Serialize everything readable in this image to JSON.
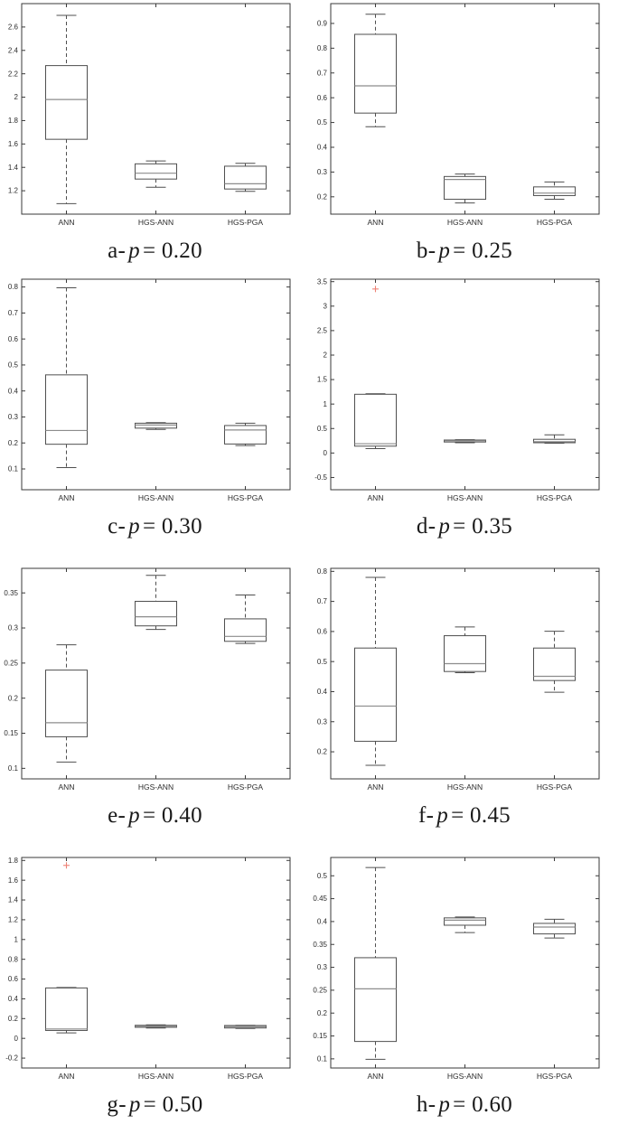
{
  "figure": {
    "categories": [
      "ANN",
      "HGS-ANN",
      "HGS-PGA"
    ],
    "colors": {
      "axis": "#3a3a3a",
      "box_stroke": "#4f4f4f",
      "whisker": "#4f4f4f",
      "median": "#8c8c8c",
      "outlier": "#ee8276",
      "tick_label": "#2b2b2b",
      "background": "#ffffff"
    }
  },
  "chart_data": [
    {
      "type": "box",
      "panel_id": "a",
      "caption_prefix": "a-",
      "caption_var": "p",
      "caption_rest": "= 0.20",
      "p_value": 0.2,
      "ylim": [
        1.0,
        2.8
      ],
      "ytick_values": [
        1.2,
        1.4,
        1.6,
        1.8,
        2,
        2.2,
        2.4,
        2.6
      ],
      "ytick_labels": [
        "1.2",
        "1.4",
        "1.6",
        "1.8",
        "2",
        "2.2",
        "2.4",
        "2.6"
      ],
      "series": [
        {
          "name": "ANN",
          "whislo": 1.09,
          "q1": 1.64,
          "med": 1.98,
          "q3": 2.27,
          "whishi": 2.7,
          "outliers": []
        },
        {
          "name": "HGS-ANN",
          "whislo": 1.23,
          "q1": 1.3,
          "med": 1.35,
          "q3": 1.43,
          "whishi": 1.455,
          "outliers": []
        },
        {
          "name": "HGS-PGA",
          "whislo": 1.195,
          "q1": 1.215,
          "med": 1.26,
          "q3": 1.41,
          "whishi": 1.435,
          "outliers": []
        }
      ]
    },
    {
      "type": "box",
      "panel_id": "b",
      "caption_prefix": "b-",
      "caption_var": "p",
      "caption_rest": "= 0.25",
      "p_value": 0.25,
      "ylim": [
        0.13,
        0.98
      ],
      "ytick_values": [
        0.2,
        0.3,
        0.4,
        0.5,
        0.6,
        0.7,
        0.8,
        0.9
      ],
      "ytick_labels": [
        "0.2",
        "0.3",
        "0.4",
        "0.5",
        "0.6",
        "0.7",
        "0.8",
        "0.9"
      ],
      "series": [
        {
          "name": "ANN",
          "whislo": 0.483,
          "q1": 0.538,
          "med": 0.648,
          "q3": 0.856,
          "whishi": 0.937,
          "outliers": []
        },
        {
          "name": "HGS-ANN",
          "whislo": 0.175,
          "q1": 0.19,
          "med": 0.27,
          "q3": 0.282,
          "whishi": 0.292,
          "outliers": []
        },
        {
          "name": "HGS-PGA",
          "whislo": 0.19,
          "q1": 0.205,
          "med": 0.215,
          "q3": 0.24,
          "whishi": 0.26,
          "outliers": []
        }
      ]
    },
    {
      "type": "box",
      "panel_id": "c",
      "caption_prefix": "c-",
      "caption_var": "p",
      "caption_rest": "= 0.30",
      "p_value": 0.3,
      "ylim": [
        0.02,
        0.83
      ],
      "ytick_values": [
        0.1,
        0.2,
        0.3,
        0.4,
        0.5,
        0.6,
        0.7,
        0.8
      ],
      "ytick_labels": [
        "0.1",
        "0.2",
        "0.3",
        "0.4",
        "0.5",
        "0.6",
        "0.7",
        "0.8"
      ],
      "series": [
        {
          "name": "ANN",
          "whislo": 0.105,
          "q1": 0.195,
          "med": 0.248,
          "q3": 0.462,
          "whishi": 0.797,
          "outliers": []
        },
        {
          "name": "HGS-ANN",
          "whislo": 0.252,
          "q1": 0.257,
          "med": 0.269,
          "q3": 0.276,
          "whishi": 0.278,
          "outliers": []
        },
        {
          "name": "HGS-PGA",
          "whislo": 0.19,
          "q1": 0.196,
          "med": 0.25,
          "q3": 0.267,
          "whishi": 0.276,
          "outliers": []
        }
      ]
    },
    {
      "type": "box",
      "panel_id": "d",
      "caption_prefix": "d-",
      "caption_var": "p",
      "caption_rest": "= 0.35",
      "p_value": 0.35,
      "ylim": [
        -0.75,
        3.55
      ],
      "ytick_values": [
        -0.5,
        0,
        0.5,
        1,
        1.5,
        2,
        2.5,
        3,
        3.5
      ],
      "ytick_labels": [
        "-0.5",
        "0",
        "0.5",
        "1",
        "1.5",
        "2",
        "2.5",
        "3",
        "3.5"
      ],
      "series": [
        {
          "name": "ANN",
          "whislo": 0.09,
          "q1": 0.14,
          "med": 0.19,
          "q3": 1.2,
          "whishi": 1.21,
          "outliers": [
            3.35
          ]
        },
        {
          "name": "HGS-ANN",
          "whislo": 0.21,
          "q1": 0.225,
          "med": 0.25,
          "q3": 0.265,
          "whishi": 0.272,
          "outliers": []
        },
        {
          "name": "HGS-PGA",
          "whislo": 0.2,
          "q1": 0.21,
          "med": 0.23,
          "q3": 0.28,
          "whishi": 0.37,
          "outliers": []
        }
      ]
    },
    {
      "type": "box",
      "panel_id": "e",
      "caption_prefix": "e-",
      "caption_var": "p",
      "caption_rest": "= 0.40",
      "p_value": 0.4,
      "ylim": [
        0.085,
        0.385
      ],
      "ytick_values": [
        0.1,
        0.15,
        0.2,
        0.25,
        0.3,
        0.35
      ],
      "ytick_labels": [
        "0.1",
        "0.15",
        "0.2",
        "0.25",
        "0.3",
        "0.35"
      ],
      "series": [
        {
          "name": "ANN",
          "whislo": 0.109,
          "q1": 0.145,
          "med": 0.165,
          "q3": 0.24,
          "whishi": 0.276,
          "outliers": []
        },
        {
          "name": "HGS-ANN",
          "whislo": 0.298,
          "q1": 0.303,
          "med": 0.316,
          "q3": 0.338,
          "whishi": 0.375,
          "outliers": []
        },
        {
          "name": "HGS-PGA",
          "whislo": 0.278,
          "q1": 0.281,
          "med": 0.288,
          "q3": 0.313,
          "whishi": 0.347,
          "outliers": []
        }
      ]
    },
    {
      "type": "box",
      "panel_id": "f",
      "caption_prefix": "f-",
      "caption_var": "p",
      "caption_rest": "= 0.45",
      "p_value": 0.45,
      "ylim": [
        0.11,
        0.81
      ],
      "ytick_values": [
        0.2,
        0.3,
        0.4,
        0.5,
        0.6,
        0.7,
        0.8
      ],
      "ytick_labels": [
        "0.2",
        "0.3",
        "0.4",
        "0.5",
        "0.6",
        "0.7",
        "0.8"
      ],
      "series": [
        {
          "name": "ANN",
          "whislo": 0.155,
          "q1": 0.235,
          "med": 0.352,
          "q3": 0.545,
          "whishi": 0.78,
          "outliers": []
        },
        {
          "name": "HGS-ANN",
          "whislo": 0.463,
          "q1": 0.467,
          "med": 0.493,
          "q3": 0.586,
          "whishi": 0.615,
          "outliers": []
        },
        {
          "name": "HGS-PGA",
          "whislo": 0.398,
          "q1": 0.437,
          "med": 0.451,
          "q3": 0.545,
          "whishi": 0.601,
          "outliers": []
        }
      ]
    },
    {
      "type": "box",
      "panel_id": "g",
      "caption_prefix": "g-",
      "caption_var": "p",
      "caption_rest": "= 0.50",
      "p_value": 0.5,
      "ylim": [
        -0.3,
        1.83
      ],
      "ytick_values": [
        -0.2,
        0,
        0.2,
        0.4,
        0.6,
        0.8,
        1,
        1.2,
        1.4,
        1.6,
        1.8
      ],
      "ytick_labels": [
        "-0.2",
        "0",
        "0.2",
        "0.4",
        "0.6",
        "0.8",
        "1",
        "1.2",
        "1.4",
        "1.6",
        "1.8"
      ],
      "series": [
        {
          "name": "ANN",
          "whislo": 0.055,
          "q1": 0.08,
          "med": 0.095,
          "q3": 0.51,
          "whishi": 0.515,
          "outliers": [
            1.75
          ]
        },
        {
          "name": "HGS-ANN",
          "whislo": 0.105,
          "q1": 0.112,
          "med": 0.123,
          "q3": 0.132,
          "whishi": 0.137,
          "outliers": []
        },
        {
          "name": "HGS-PGA",
          "whislo": 0.1,
          "q1": 0.105,
          "med": 0.118,
          "q3": 0.13,
          "whishi": 0.132,
          "outliers": []
        }
      ]
    },
    {
      "type": "box",
      "panel_id": "h",
      "caption_prefix": "h-",
      "caption_var": "p",
      "caption_rest": "= 0.60",
      "p_value": 0.6,
      "ylim": [
        0.08,
        0.54
      ],
      "ytick_values": [
        0.1,
        0.15,
        0.2,
        0.25,
        0.3,
        0.35,
        0.4,
        0.45,
        0.5
      ],
      "ytick_labels": [
        "0.1",
        "0.15",
        "0.2",
        "0.25",
        "0.3",
        "0.35",
        "0.4",
        "0.45",
        "0.5"
      ],
      "series": [
        {
          "name": "ANN",
          "whislo": 0.099,
          "q1": 0.138,
          "med": 0.253,
          "q3": 0.321,
          "whishi": 0.518,
          "outliers": []
        },
        {
          "name": "HGS-ANN",
          "whislo": 0.376,
          "q1": 0.392,
          "med": 0.403,
          "q3": 0.408,
          "whishi": 0.41,
          "outliers": []
        },
        {
          "name": "HGS-PGA",
          "whislo": 0.364,
          "q1": 0.373,
          "med": 0.388,
          "q3": 0.396,
          "whishi": 0.405,
          "outliers": []
        }
      ]
    }
  ]
}
